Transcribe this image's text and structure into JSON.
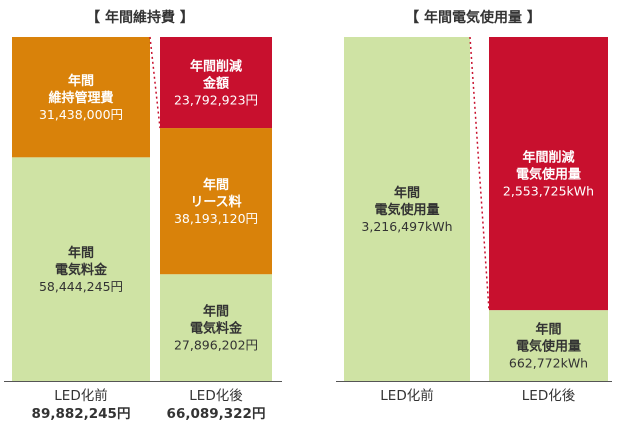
{
  "colors": {
    "electricity": "#cfe3a4",
    "maintenance": "#d9820a",
    "lease": "#d9820a",
    "reduction": "#c8102e",
    "connector": "#c8102e",
    "baseline": "#555555"
  },
  "chart_data": [
    {
      "type": "stacked-bar",
      "title": "【 年間維持費 】",
      "unit": "円",
      "categories": [
        "LED化前",
        "LED化後"
      ],
      "totals": [
        "89,882,245円",
        "66,089,322円"
      ],
      "ylim": [
        0,
        89882245
      ],
      "bars": [
        {
          "category": "LED化前",
          "segments": [
            {
              "lines": [
                "年間",
                "電気料金"
              ],
              "value": 58444245,
              "value_label": "58,444,245円",
              "color": "#cfe3a4",
              "text_color": "#333333"
            },
            {
              "lines": [
                "年間",
                "維持管理費"
              ],
              "value": 31438000,
              "value_label": "31,438,000円",
              "color": "#d9820a",
              "text_color": "#ffffff"
            }
          ]
        },
        {
          "category": "LED化後",
          "segments": [
            {
              "lines": [
                "年間",
                "電気料金"
              ],
              "value": 27896202,
              "value_label": "27,896,202円",
              "color": "#cfe3a4",
              "text_color": "#333333"
            },
            {
              "lines": [
                "年間",
                "リース料"
              ],
              "value": 38193120,
              "value_label": "38,193,120円",
              "color": "#d9820a",
              "text_color": "#ffffff"
            },
            {
              "lines": [
                "年間削減",
                "金額"
              ],
              "value": 23792923,
              "value_label": "23,792,923円",
              "color": "#c8102e",
              "text_color": "#ffffff"
            }
          ]
        }
      ]
    },
    {
      "type": "stacked-bar",
      "title": "【 年間電気使用量 】",
      "unit": "kWh",
      "categories": [
        "LED化前",
        "LED化後"
      ],
      "totals": [
        "",
        ""
      ],
      "ylim": [
        0,
        3216497
      ],
      "bars": [
        {
          "category": "LED化前",
          "segments": [
            {
              "lines": [
                "年間",
                "電気使用量"
              ],
              "value": 3216497,
              "value_label": "3,216,497kWh",
              "color": "#cfe3a4",
              "text_color": "#333333"
            }
          ]
        },
        {
          "category": "LED化後",
          "segments": [
            {
              "lines": [
                "年間",
                "電気使用量"
              ],
              "value": 662772,
              "value_label": "662,772kWh",
              "color": "#cfe3a4",
              "text_color": "#333333"
            },
            {
              "lines": [
                "年間削減",
                "電気使用量"
              ],
              "value": 2553725,
              "value_label": "2,553,725kWh",
              "color": "#c8102e",
              "text_color": "#ffffff"
            }
          ]
        }
      ]
    }
  ]
}
